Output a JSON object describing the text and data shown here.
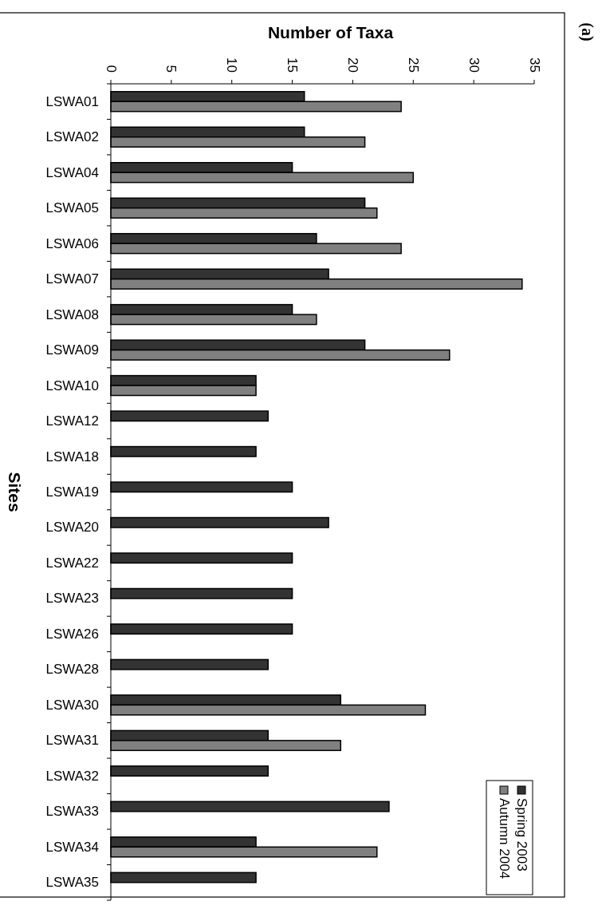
{
  "chart_data": {
    "type": "bar",
    "orientation": "horizontal",
    "title": "Number of Taxa",
    "ylabel": "Sites",
    "annotations": [
      "(a)"
    ],
    "categories": [
      "LSWA01",
      "LSWA02",
      "LSWA04",
      "LSWA05",
      "LSWA06",
      "LSWA07",
      "LSWA08",
      "LSWA09",
      "LSWA10",
      "LSWA12",
      "LSWA18",
      "LSWA19",
      "LSWA20",
      "LSWA22",
      "LSWA23",
      "LSWA26",
      "LSWA28",
      "LSWA30",
      "LSWA31",
      "LSWA32",
      "LSWA33",
      "LSWA34",
      "LSWA35"
    ],
    "series": [
      {
        "name": "Spring 2003",
        "color": "#333333",
        "values": [
          16,
          16,
          15,
          21,
          17,
          18,
          15,
          21,
          12,
          13,
          12,
          15,
          18,
          15,
          15,
          15,
          13,
          19,
          13,
          13,
          23,
          12,
          12
        ]
      },
      {
        "name": "Autumn 2004",
        "color": "#808080",
        "values": [
          24,
          21,
          25,
          22,
          24,
          34,
          17,
          28,
          12,
          null,
          null,
          null,
          null,
          null,
          null,
          null,
          null,
          26,
          19,
          null,
          null,
          22,
          null
        ]
      }
    ],
    "xlim": [
      0,
      35
    ],
    "xticks": [
      0,
      5,
      10,
      15,
      20,
      25,
      30,
      35
    ],
    "grid": false,
    "legend": "bottom right"
  }
}
